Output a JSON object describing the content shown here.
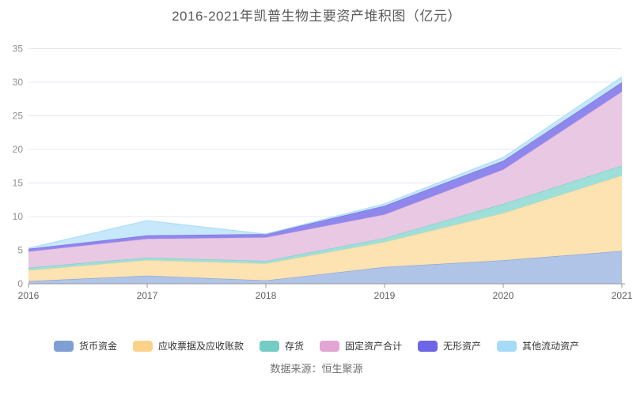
{
  "footer": {
    "source": "数据来源：恒生聚源"
  },
  "chart_data": {
    "type": "area",
    "stacked": true,
    "title": "2016-2021年凯普生物主要资产堆积图（亿元）",
    "unit": "亿元",
    "categories": [
      "2016",
      "2017",
      "2018",
      "2019",
      "2020",
      "2021"
    ],
    "series": [
      {
        "name": "货币资金",
        "color": "#7f9fd4",
        "area_color": "#b0c4e7",
        "values": [
          0.4,
          1.2,
          0.5,
          2.5,
          3.5,
          4.9
        ]
      },
      {
        "name": "应收票据及应收账款",
        "color": "#fbd28c",
        "area_color": "#fde3b2",
        "values": [
          1.6,
          2.3,
          2.5,
          3.7,
          7.0,
          11.2
        ]
      },
      {
        "name": "存货",
        "color": "#74ccc5",
        "area_color": "#9edfd9",
        "values": [
          0.4,
          0.4,
          0.4,
          0.6,
          1.4,
          1.5
        ]
      },
      {
        "name": "固定资产合计",
        "color": "#e3a5d2",
        "area_color": "#e9c8e4",
        "values": [
          2.4,
          2.8,
          3.5,
          3.5,
          5.1,
          11.0
        ]
      },
      {
        "name": "无形资产",
        "color": "#6e66e8",
        "area_color": "#8f88ec",
        "values": [
          0.4,
          0.5,
          0.5,
          1.3,
          1.3,
          1.4
        ]
      },
      {
        "name": "其他流动资产",
        "color": "#a6dbf7",
        "area_color": "#c6e8fa",
        "values": [
          0.1,
          2.2,
          0.0,
          0.3,
          0.5,
          0.8
        ]
      }
    ],
    "y_ticks": [
      0,
      5,
      10,
      15,
      20,
      25,
      30,
      35
    ],
    "ylim": [
      0,
      35
    ],
    "grid": true,
    "legend_position": "bottom",
    "grid_color": "#e6e8f4",
    "axis_color": "#999999"
  }
}
